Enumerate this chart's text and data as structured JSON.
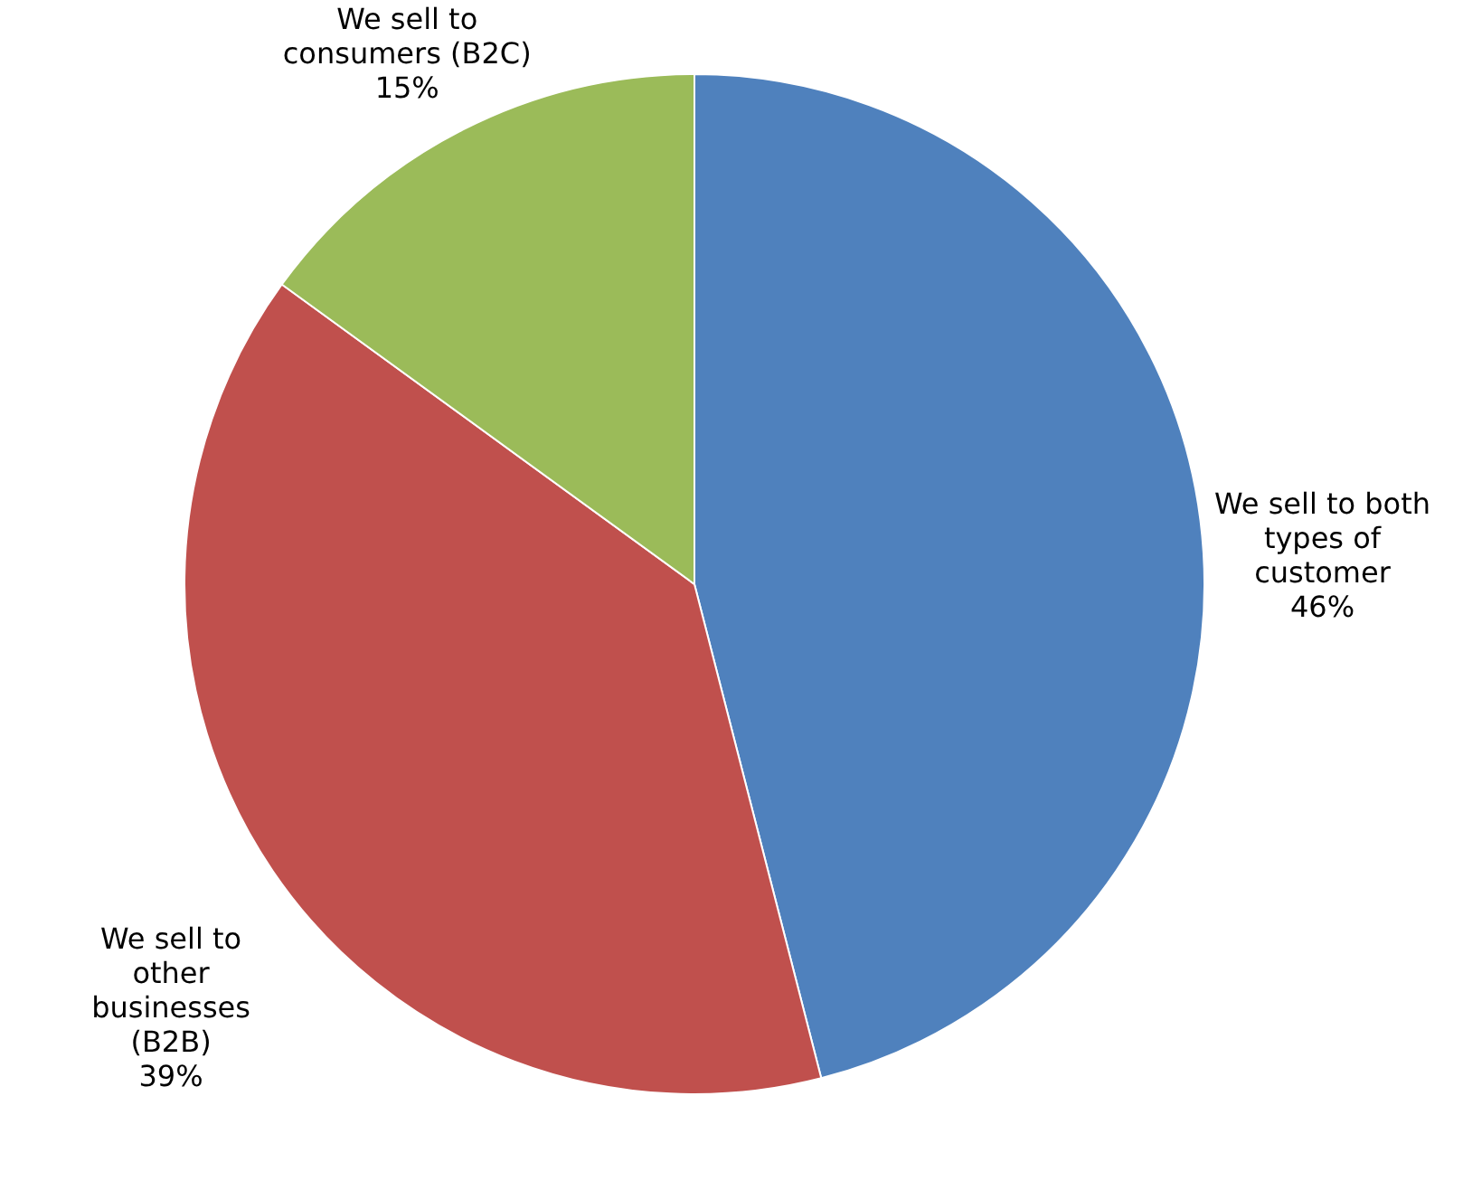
{
  "chart_data": {
    "type": "pie",
    "categories": [
      "We sell to both types of customer",
      "We sell to other businesses (B2B)",
      "We sell to consumers (B2C)"
    ],
    "values": [
      46,
      39,
      15
    ],
    "value_labels": [
      "46%",
      "39%",
      "15%"
    ],
    "colors": [
      "#4f81bd",
      "#c0504d",
      "#9bbb59"
    ]
  }
}
